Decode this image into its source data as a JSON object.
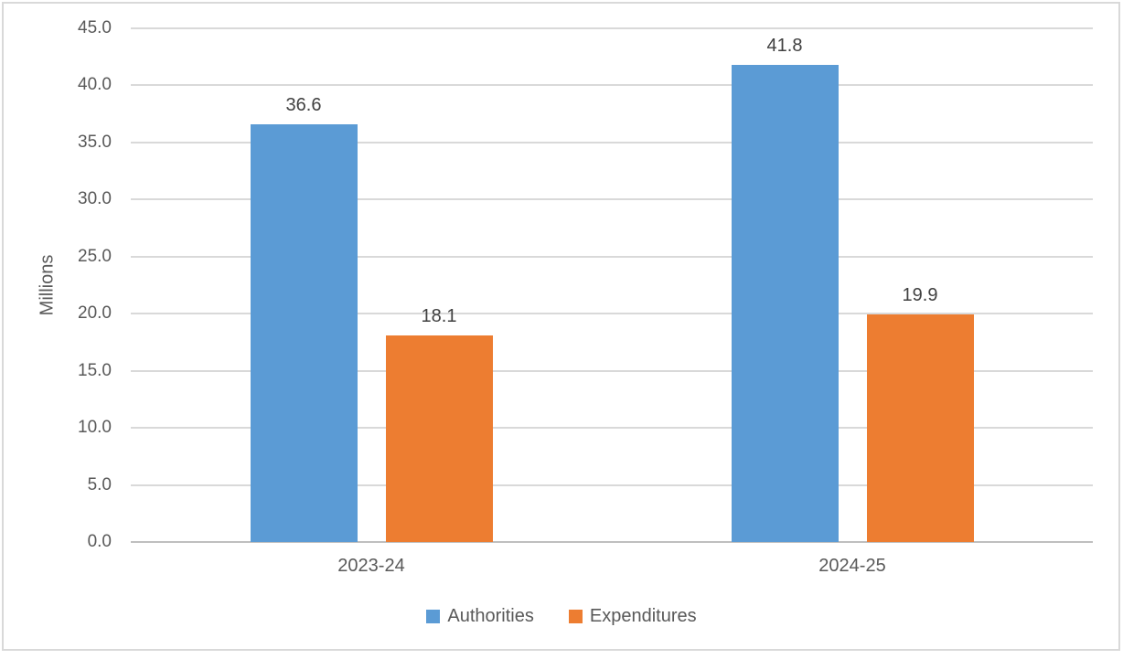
{
  "chart_data": {
    "type": "bar",
    "title": "",
    "categories": [
      "2023-24",
      "2024-25"
    ],
    "series": [
      {
        "name": "Authorities",
        "color": "#5B9BD5",
        "values": [
          36.6,
          41.8
        ]
      },
      {
        "name": "Expenditures",
        "color": "#ED7D31",
        "values": [
          18.1,
          19.9
        ]
      }
    ],
    "xlabel": "",
    "ylabel": "Millions",
    "ylim": [
      0,
      45
    ],
    "y_ticks": [
      "0.0",
      "5.0",
      "10.0",
      "15.0",
      "20.0",
      "25.0",
      "30.0",
      "35.0",
      "40.0",
      "45.0"
    ],
    "grid": true,
    "data_labels": true,
    "legend_position": "bottom"
  },
  "colors": {
    "axis_text": "#595959",
    "data_label_text": "#404040",
    "gridline": "#D9D9D9",
    "axis_line": "#BFBFBF",
    "frame_border": "#D9D9D9",
    "background": "#FFFFFF"
  }
}
